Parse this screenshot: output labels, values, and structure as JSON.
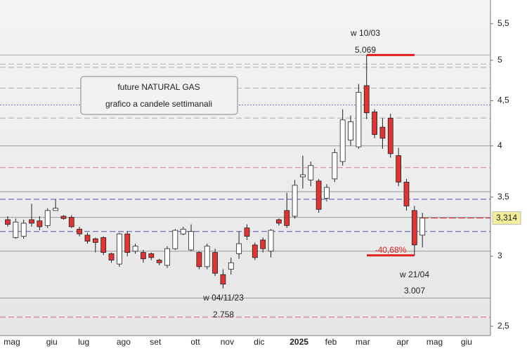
{
  "chart_data": {
    "type": "candlestick",
    "text_box": [
      "future NATURAL GAS",
      "grafico a candele settimanali"
    ],
    "categories": [
      "mag",
      null,
      null,
      null,
      null,
      "giu",
      null,
      null,
      null,
      "lug",
      null,
      null,
      null,
      null,
      "ago",
      null,
      null,
      null,
      "set",
      null,
      null,
      null,
      null,
      "ott",
      null,
      null,
      null,
      "nov",
      null,
      null,
      null,
      "dic",
      null,
      null,
      null,
      null,
      "2025",
      null,
      null,
      null,
      "feb",
      null,
      null,
      null,
      "mar",
      null,
      null,
      null,
      null,
      "apr",
      null,
      null,
      null,
      "mag",
      null,
      null,
      null,
      "giu",
      null,
      null,
      null
    ],
    "open": [
      3.3,
      3.15,
      3.16,
      3.3,
      3.29,
      3.25,
      3.38,
      3.33,
      3.32,
      3.22,
      3.17,
      3.14,
      3.15,
      3.02,
      2.94,
      3.18,
      3.04,
      3.03,
      3.02,
      2.97,
      2.93,
      3.06,
      3.18,
      3.05,
      3.03,
      2.92,
      3.03,
      2.86,
      2.9,
      3.02,
      3.23,
      3.09,
      3.13,
      3.04,
      3.3,
      3.38,
      3.33,
      3.69,
      3.66,
      3.65,
      3.49,
      3.67,
      3.84,
      4.06,
      3.99,
      4.68,
      4.37,
      4.2,
      4.3,
      3.9,
      3.64,
      3.38,
      3.17,
      null,
      null,
      null,
      null,
      null,
      null,
      null,
      null
    ],
    "high": [
      3.33,
      3.31,
      3.3,
      3.44,
      3.33,
      3.4,
      3.48,
      3.34,
      3.34,
      3.24,
      3.19,
      3.15,
      3.16,
      3.03,
      3.19,
      3.2,
      3.1,
      3.05,
      3.03,
      2.98,
      3.08,
      3.22,
      3.24,
      3.26,
      3.04,
      3.1,
      3.06,
      2.9,
      2.99,
      3.2,
      3.26,
      3.11,
      3.15,
      3.22,
      3.31,
      3.54,
      3.66,
      3.9,
      3.84,
      3.67,
      3.62,
      3.97,
      4.4,
      4.33,
      4.7,
      5.069,
      4.4,
      4.3,
      4.35,
      3.98,
      3.67,
      3.42,
      3.36,
      null,
      null,
      null,
      null,
      null,
      null,
      null,
      null
    ],
    "low": [
      3.24,
      3.14,
      3.14,
      3.24,
      3.21,
      3.23,
      3.38,
      3.3,
      3.23,
      3.16,
      3.1,
      3.03,
      3.01,
      2.95,
      2.92,
      3.0,
      3.02,
      2.95,
      2.97,
      2.93,
      2.91,
      3.05,
      3.17,
      3.04,
      2.9,
      2.9,
      2.85,
      2.758,
      2.86,
      2.98,
      3.13,
      2.97,
      3.03,
      2.99,
      3.25,
      3.23,
      3.31,
      3.58,
      3.6,
      3.36,
      3.46,
      3.64,
      3.8,
      4.0,
      3.97,
      4.29,
      4.08,
      3.97,
      3.88,
      3.6,
      3.38,
      3.007,
      3.07,
      null,
      null,
      null,
      null,
      null,
      null,
      null,
      null
    ],
    "close": [
      3.26,
      3.28,
      3.27,
      3.27,
      3.24,
      3.38,
      3.4,
      3.31,
      3.24,
      3.18,
      3.12,
      3.11,
      3.03,
      2.97,
      3.18,
      3.03,
      3.08,
      2.98,
      2.99,
      2.95,
      3.06,
      3.21,
      3.22,
      3.2,
      2.92,
      3.08,
      2.87,
      2.79,
      2.95,
      3.1,
      3.16,
      2.99,
      3.06,
      3.21,
      3.27,
      3.25,
      3.61,
      3.71,
      3.8,
      3.39,
      3.59,
      3.93,
      4.28,
      4.26,
      4.6,
      4.36,
      4.12,
      4.08,
      3.92,
      3.64,
      3.42,
      3.09,
      3.314,
      null,
      null,
      null,
      null,
      null,
      null,
      null,
      null
    ],
    "up_color": "#ffffff",
    "down_color": "#e03434",
    "log_scale": true,
    "ylim": [
      2.44,
      5.85
    ],
    "yticks": [
      {
        "value": 2.5,
        "label": "2,5"
      },
      3,
      {
        "value": 3.5,
        "label": "3,5"
      },
      4,
      {
        "value": 4.5,
        "label": "4,5"
      },
      5,
      {
        "value": 5.5,
        "label": "5,5"
      }
    ],
    "levels": [
      {
        "value": 5.069,
        "color": "#aaaaaa",
        "style": "solid"
      },
      {
        "value": 4.95,
        "color": "#b0b0b0",
        "style": "dashed"
      },
      {
        "value": 4.91,
        "color": "#b0b0b0",
        "style": "dashed"
      },
      {
        "value": 4.65,
        "color": "#b0b0b0",
        "style": "dashed"
      },
      {
        "value": 4.45,
        "color": "#6a6ad0",
        "style": "dotted"
      },
      {
        "value": 4.3,
        "color": "#b0b0b0",
        "style": "dashed"
      },
      {
        "value": 4.0,
        "color": "#999999",
        "style": "solid"
      },
      {
        "value": 3.78,
        "color": "#e080a0",
        "style": "dashed"
      },
      {
        "value": 3.55,
        "color": "#999999",
        "style": "solid"
      },
      {
        "value": 3.48,
        "color": "#5050c0",
        "style": "dashed"
      },
      {
        "value": 3.32,
        "color": "#999999",
        "style": "solid"
      },
      {
        "value": 3.2,
        "color": "#5050c0",
        "style": "dashed"
      },
      {
        "value": 3.04,
        "color": "#999999",
        "style": "solid"
      },
      {
        "value": 2.69,
        "color": "#999999",
        "style": "solid"
      },
      {
        "value": 2.56,
        "color": "#e06080",
        "style": "dashed"
      }
    ],
    "callouts": [
      {
        "label": "w 10/03",
        "value": 5.069
      },
      {
        "label": "w 04/11/23",
        "value": 2.758
      },
      {
        "label": "w 21/04",
        "value": 3.007
      }
    ],
    "change": {
      "value": -40.68,
      "label": "-40,68%"
    },
    "last_price": {
      "value": 3.314,
      "label": "3,314"
    }
  }
}
